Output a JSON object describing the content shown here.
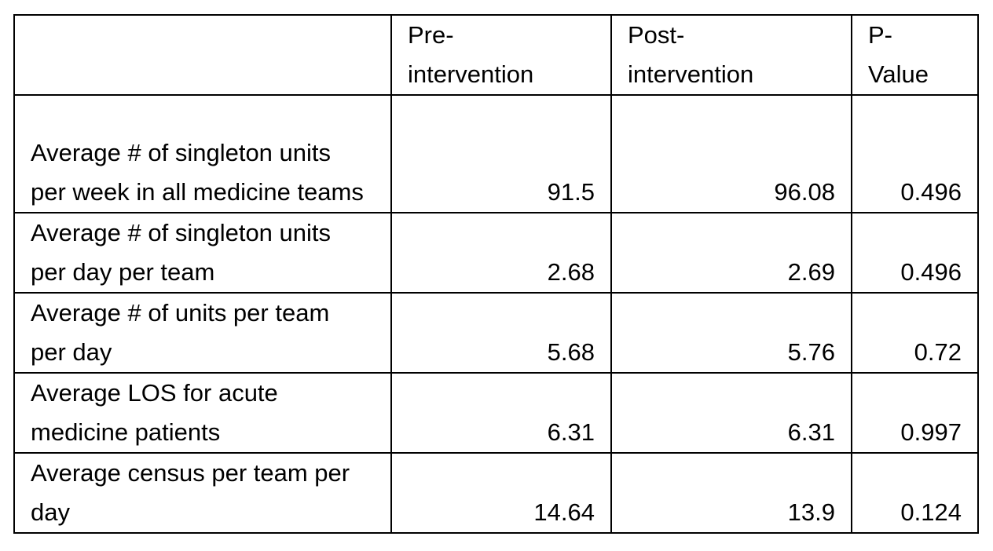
{
  "table": {
    "header": [
      "",
      "Pre-intervention",
      "Post-intervention",
      "P-Value"
    ],
    "rows": [
      [
        "Average # of singleton units per week in all medicine teams",
        "91.5",
        "96.08",
        "0.496"
      ],
      [
        "Average # of singleton units per day per team",
        "2.68",
        "2.69",
        "0.496"
      ],
      [
        "Average # of units per team per day",
        "5.68",
        "5.76",
        "0.72"
      ],
      [
        "Average LOS for acute medicine patients",
        "6.31",
        "6.31",
        "0.997"
      ],
      [
        "Average census per team per day",
        "14.64",
        "13.9",
        "0.124"
      ]
    ]
  }
}
